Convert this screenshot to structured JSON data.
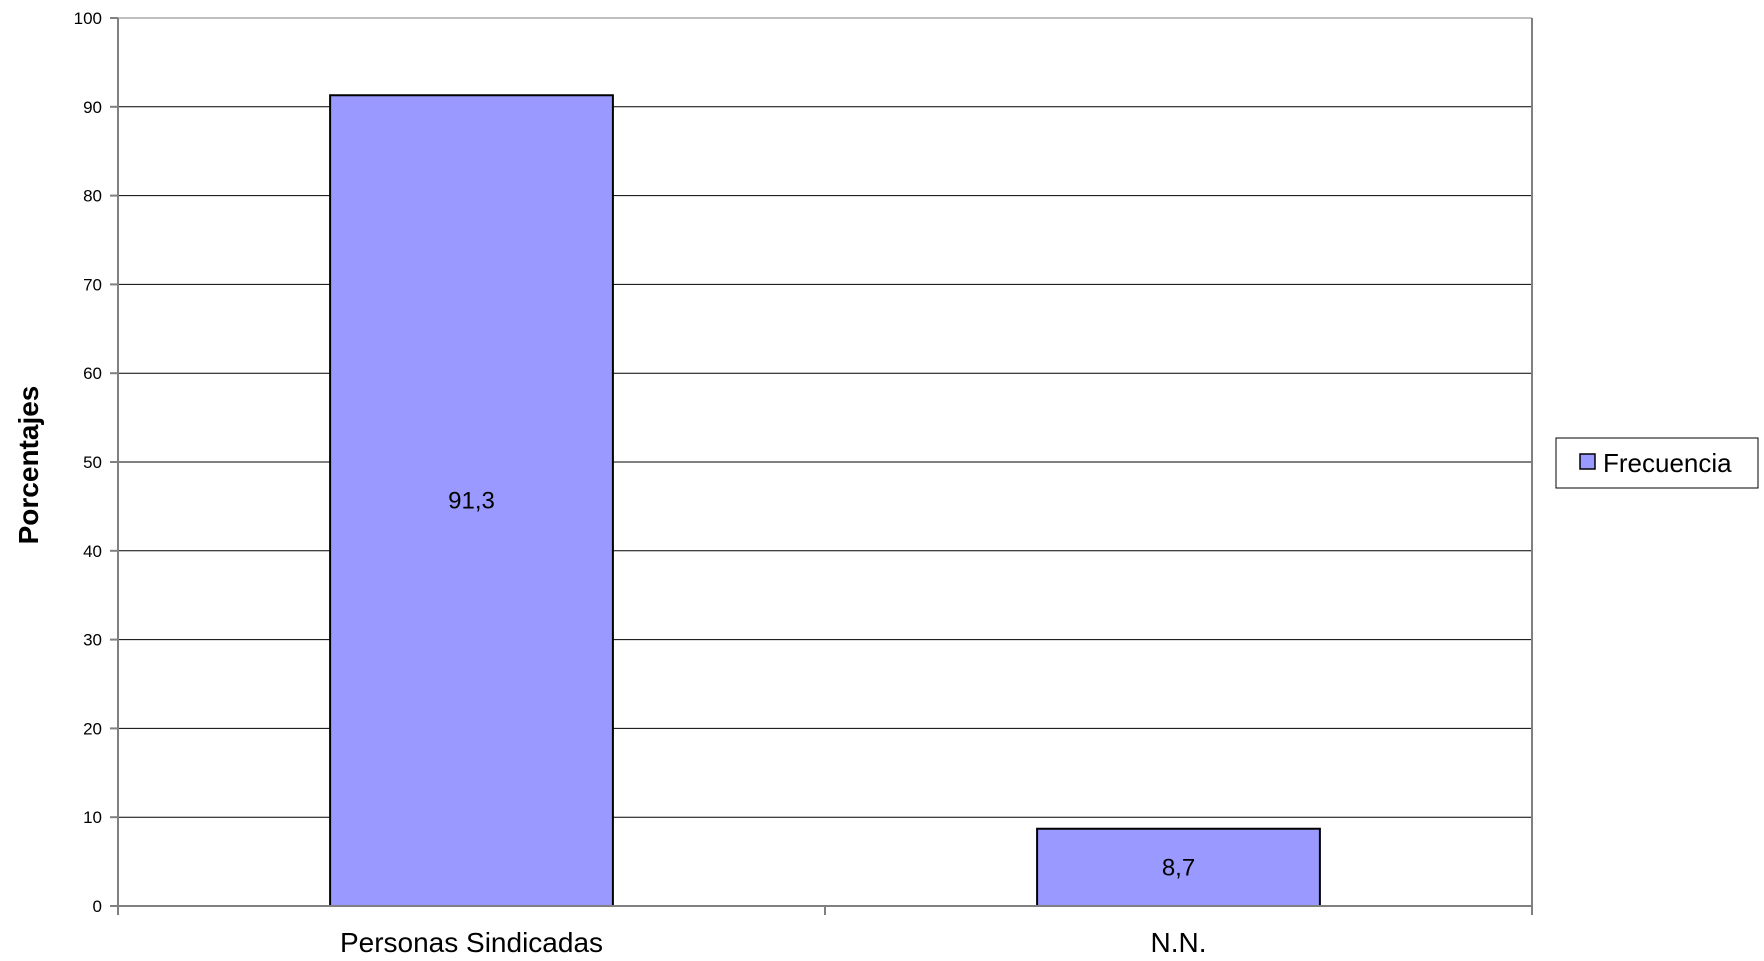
{
  "chart_data": {
    "type": "bar",
    "categories": [
      "Personas Sindicadas",
      "N.N."
    ],
    "series": [
      {
        "name": "Frecuencia",
        "values": [
          91.3,
          8.7
        ],
        "data_labels": [
          "91,3",
          "8,7"
        ]
      }
    ],
    "ylabel": "Porcentajes",
    "xlabel": "",
    "ylim": [
      0,
      100
    ],
    "yticks": [
      0,
      10,
      20,
      30,
      40,
      50,
      60,
      70,
      80,
      90,
      100
    ],
    "grid": true,
    "legend_position": "right",
    "colors": {
      "bar_fill": "#9999ff",
      "bar_stroke": "#000000",
      "grid": "#000000",
      "axis": "#808080"
    }
  }
}
